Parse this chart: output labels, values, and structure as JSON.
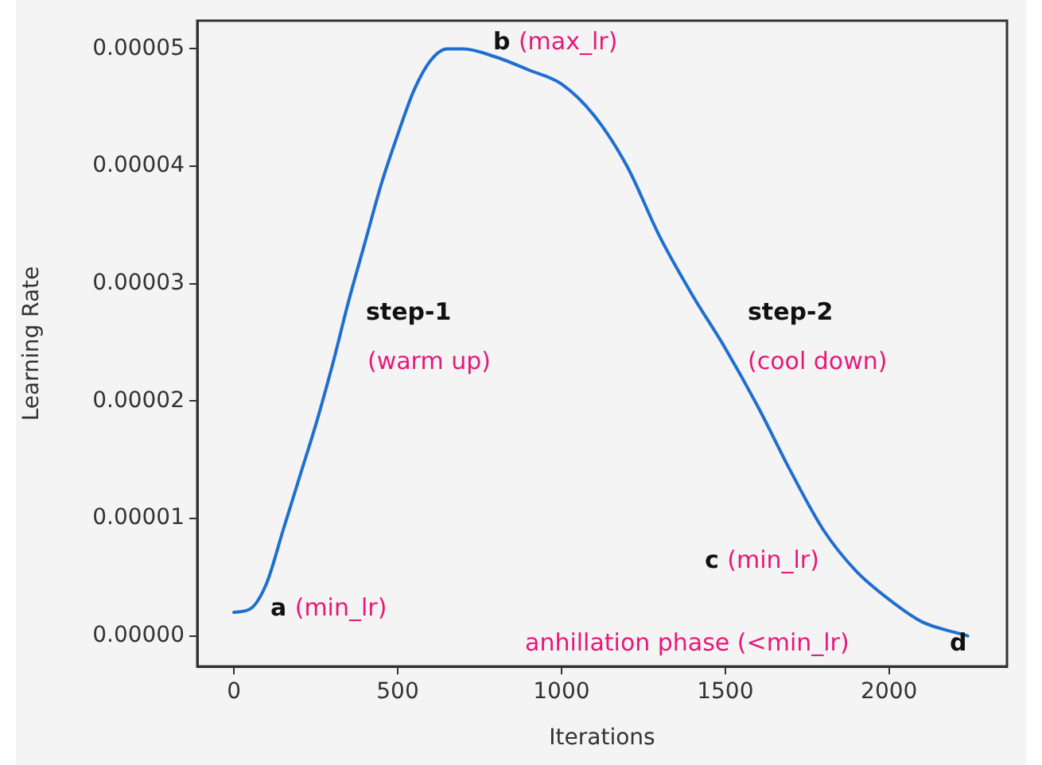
{
  "chart_data": {
    "type": "line",
    "xlabel": "Iterations",
    "ylabel": "Learning Rate",
    "xlim": [
      -112,
      2360
    ],
    "ylim": [
      -2.6e-06,
      5.24e-05
    ],
    "xticks": [
      0,
      500,
      1000,
      1500,
      2000
    ],
    "yticks": [
      {
        "value": 0,
        "label": "0.00000"
      },
      {
        "value": 1e-05,
        "label": "0.00001"
      },
      {
        "value": 2e-05,
        "label": "0.00002"
      },
      {
        "value": 3e-05,
        "label": "0.00003"
      },
      {
        "value": 4e-05,
        "label": "0.00004"
      },
      {
        "value": 5e-05,
        "label": "0.00005"
      }
    ],
    "x": [
      0,
      50,
      100,
      150,
      200,
      250,
      300,
      350,
      400,
      450,
      500,
      550,
      600,
      650,
      700,
      800,
      900,
      1000,
      1100,
      1200,
      1300,
      1400,
      1500,
      1600,
      1700,
      1800,
      1900,
      2000,
      2100,
      2200,
      2240
    ],
    "series": [
      {
        "color": "#1f6fd0",
        "values": [
          2e-06,
          2.3e-06,
          4.5e-06,
          9e-06,
          1.35e-05,
          1.8e-05,
          2.3e-05,
          2.85e-05,
          3.35e-05,
          3.85e-05,
          4.27e-05,
          4.65e-05,
          4.9e-05,
          5e-05,
          5e-05,
          4.93e-05,
          4.82e-05,
          4.7e-05,
          4.43e-05,
          4e-05,
          3.4e-05,
          2.9e-05,
          2.45e-05,
          1.95e-05,
          1.4e-05,
          9e-06,
          5.5e-06,
          3.1e-06,
          1.2e-06,
          3e-07,
          0.0
        ]
      }
    ],
    "marker": "none",
    "line_style": "solid",
    "annotations": [
      "b (max_lr)",
      "step-1",
      "(warm up)",
      "step-2",
      "(cool down)",
      "a (min_lr)",
      "c (min_lr)",
      "anhillation phase (<min_lr)",
      "d"
    ]
  }
}
